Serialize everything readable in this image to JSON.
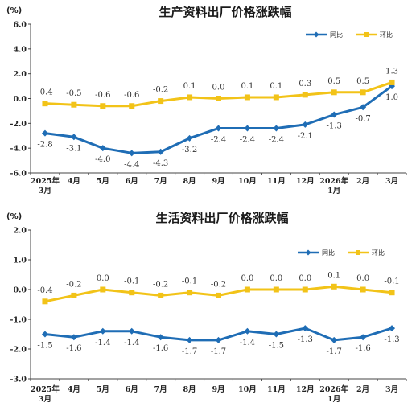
{
  "chart_data": [
    {
      "type": "line",
      "title": "生产资料出厂价格涨跌幅",
      "unit": "(%)",
      "categories": [
        "2025年\n3月",
        "4月",
        "5月",
        "6月",
        "7月",
        "8月",
        "9月",
        "10月",
        "11月",
        "12月",
        "2026年\n1月",
        "2月",
        "3月"
      ],
      "ylim": [
        -6.0,
        6.0
      ],
      "yticks": [
        "6.0",
        "4.0",
        "2.0",
        "0.0",
        "-2.0",
        "-4.0",
        "-6.0"
      ],
      "ytick_values": [
        6,
        4,
        2,
        0,
        -2,
        -4,
        -6
      ],
      "legend_position": "top-right",
      "series": [
        {
          "name": "同比",
          "color": "#1f6db5",
          "marker": "diamond",
          "values": [
            -2.8,
            -3.1,
            -4.0,
            -4.4,
            -4.3,
            -3.2,
            -2.4,
            -2.4,
            -2.4,
            -2.1,
            -1.3,
            -0.7,
            1.0
          ],
          "labels": [
            "-2.8",
            "-3.1",
            "-4.0",
            "-4.4",
            "-4.3",
            "-3.2",
            "-2.4",
            "-2.4",
            "-2.4",
            "-2.1",
            "-1.3",
            "-0.7",
            "1.0"
          ],
          "label_position": "below"
        },
        {
          "name": "环比",
          "color": "#f2c318",
          "marker": "square",
          "values": [
            -0.4,
            -0.5,
            -0.6,
            -0.6,
            -0.2,
            0.1,
            0.0,
            0.1,
            0.1,
            0.3,
            0.5,
            0.5,
            1.3
          ],
          "labels": [
            "-0.4",
            "-0.5",
            "-0.6",
            "-0.6",
            "-0.2",
            "0.1",
            "0.0",
            "0.1",
            "0.1",
            "0.3",
            "0.5",
            "0.5",
            "1.3"
          ],
          "label_position": "above"
        }
      ]
    },
    {
      "type": "line",
      "title": "生活资料出厂价格涨跌幅",
      "unit": "(%)",
      "categories": [
        "2025年\n3月",
        "4月",
        "5月",
        "6月",
        "7月",
        "8月",
        "9月",
        "10月",
        "11月",
        "12月",
        "2026年\n1月",
        "2月",
        "3月"
      ],
      "ylim": [
        -3.0,
        2.0
      ],
      "yticks": [
        "2.0",
        "1.0",
        "0.0",
        "-1.0",
        "-2.0",
        "-3.0"
      ],
      "ytick_values": [
        2,
        1,
        0,
        -1,
        -2,
        -3
      ],
      "legend_position": "top-right",
      "series": [
        {
          "name": "同比",
          "color": "#1f6db5",
          "marker": "diamond",
          "values": [
            -1.5,
            -1.6,
            -1.4,
            -1.4,
            -1.6,
            -1.7,
            -1.7,
            -1.4,
            -1.5,
            -1.3,
            -1.7,
            -1.6,
            -1.3
          ],
          "labels": [
            "-1.5",
            "-1.6",
            "-1.4",
            "-1.4",
            "-1.6",
            "-1.7",
            "-1.7",
            "-1.4",
            "-1.5",
            "-1.3",
            "-1.7",
            "-1.6",
            "-1.3"
          ],
          "label_position": "below"
        },
        {
          "name": "环比",
          "color": "#f2c318",
          "marker": "square",
          "values": [
            -0.4,
            -0.2,
            0.0,
            -0.1,
            -0.2,
            -0.1,
            -0.2,
            0.0,
            0.0,
            0.0,
            0.1,
            0.0,
            -0.1
          ],
          "labels": [
            "-0.4",
            "-0.2",
            "0.0",
            "-0.1",
            "-0.2",
            "-0.1",
            "-0.2",
            "0.0",
            "0.0",
            "0.0",
            "0.1",
            "0.0",
            "-0.1"
          ],
          "label_position": "above"
        }
      ]
    }
  ]
}
